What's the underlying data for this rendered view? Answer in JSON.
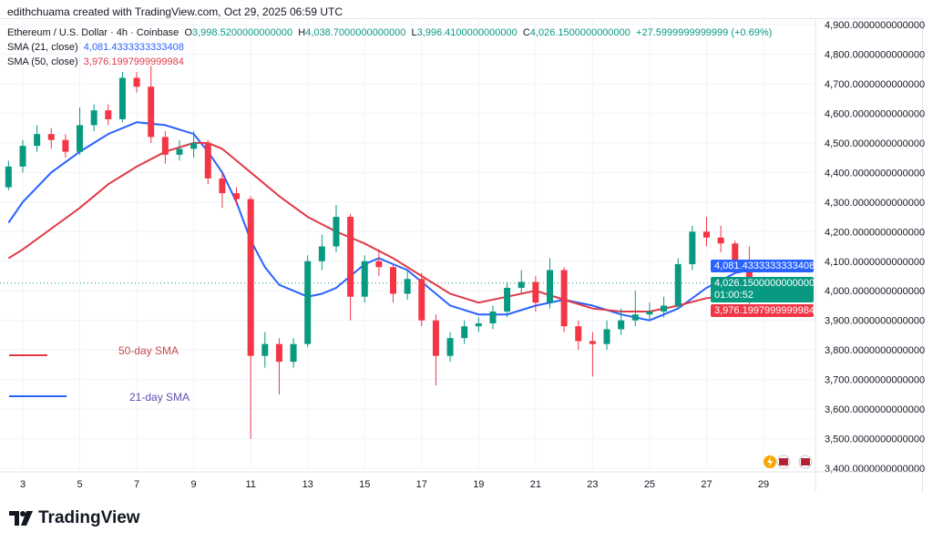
{
  "credit": "edithchuama created with TradingView.com, Oct 29, 2025 06:59 UTC",
  "header": {
    "symbol": "Ethereum / U.S. Dollar · 4h · Coinbase",
    "o_label": "O",
    "o": "3,998.5200000000000",
    "h_label": "H",
    "h": "4,038.7000000000000",
    "l_label": "L",
    "l": "3,996.4100000000000",
    "c_label": "C",
    "c": "4,026.1500000000000",
    "change": "+27.5999999999999 (+0.69%)",
    "sma21_label": "SMA (21, close)",
    "sma21_value": "4,081.4333333333408",
    "sma50_label": "SMA (50, close)",
    "sma50_value": "3,976.1997999999984"
  },
  "tags": {
    "sma21": "4,081.4333333333408",
    "price": "4,026.1500000000000",
    "countdown": "01:00:52",
    "sma50": "3,976.1997999999984"
  },
  "annotations": {
    "sma50": "50-day SMA",
    "sma21": "21-day SMA"
  },
  "logo": "TradingView",
  "colors": {
    "up": "#089981",
    "down": "#f23645",
    "sma21": "#2962ff",
    "sma50": "#e03a48"
  },
  "chart_data": {
    "type": "candlestick",
    "x_ticks": [
      "3",
      "5",
      "7",
      "9",
      "11",
      "13",
      "15",
      "17",
      "19",
      "21",
      "23",
      "25",
      "27",
      "29"
    ],
    "y_ticks": [
      "4,900.0000000000000",
      "4,800.0000000000000",
      "4,700.0000000000000",
      "4,600.0000000000000",
      "4,500.0000000000000",
      "4,400.0000000000000",
      "4,300.0000000000000",
      "4,200.0000000000000",
      "4,100.0000000000000",
      "4,000.0000000000000",
      "3,900.0000000000000",
      "3,800.0000000000000",
      "3,700.0000000000000",
      "3,600.0000000000000",
      "3,500.0000000000000",
      "3,400.0000000000000"
    ],
    "ylim": [
      3370,
      4930
    ],
    "xlim": [
      2.5,
      29.5
    ],
    "grid": true,
    "candles": [
      [
        2.5,
        4350,
        4440,
        4340,
        4420
      ],
      [
        3,
        4420,
        4510,
        4400,
        4490
      ],
      [
        3.5,
        4490,
        4560,
        4470,
        4530
      ],
      [
        4,
        4530,
        4550,
        4480,
        4510
      ],
      [
        4.5,
        4510,
        4530,
        4450,
        4470
      ],
      [
        5,
        4470,
        4620,
        4460,
        4560
      ],
      [
        5.5,
        4560,
        4630,
        4540,
        4610
      ],
      [
        6,
        4610,
        4630,
        4560,
        4580
      ],
      [
        6.5,
        4580,
        4740,
        4570,
        4720
      ],
      [
        7,
        4720,
        4740,
        4670,
        4690
      ],
      [
        7.5,
        4690,
        4760,
        4500,
        4520
      ],
      [
        8,
        4520,
        4540,
        4430,
        4460
      ],
      [
        8.5,
        4460,
        4510,
        4440,
        4480
      ],
      [
        9,
        4480,
        4540,
        4450,
        4500
      ],
      [
        9.5,
        4500,
        4510,
        4360,
        4380
      ],
      [
        10,
        4380,
        4400,
        4280,
        4330
      ],
      [
        10.5,
        4330,
        4350,
        4290,
        4310
      ],
      [
        11,
        4310,
        4320,
        3500,
        3780
      ],
      [
        11.5,
        3780,
        3860,
        3740,
        3820
      ],
      [
        12,
        3820,
        3840,
        3650,
        3760
      ],
      [
        12.5,
        3760,
        3840,
        3740,
        3820
      ],
      [
        13,
        3820,
        4120,
        3810,
        4100
      ],
      [
        13.5,
        4100,
        4190,
        4070,
        4150
      ],
      [
        14,
        4150,
        4290,
        4130,
        4250
      ],
      [
        14.5,
        4250,
        4260,
        3900,
        3980
      ],
      [
        15,
        3980,
        4120,
        3960,
        4100
      ],
      [
        15.5,
        4100,
        4140,
        4050,
        4080
      ],
      [
        16,
        4080,
        4090,
        3960,
        3990
      ],
      [
        16.5,
        3990,
        4070,
        3970,
        4040
      ],
      [
        17,
        4040,
        4060,
        3880,
        3900
      ],
      [
        17.5,
        3900,
        3920,
        3680,
        3780
      ],
      [
        18,
        3780,
        3860,
        3760,
        3840
      ],
      [
        18.5,
        3840,
        3900,
        3820,
        3880
      ],
      [
        19,
        3880,
        3910,
        3860,
        3890
      ],
      [
        19.5,
        3890,
        3950,
        3870,
        3930
      ],
      [
        20,
        3930,
        4030,
        3910,
        4010
      ],
      [
        20.5,
        4010,
        4070,
        3990,
        4030
      ],
      [
        21,
        4030,
        4050,
        3930,
        3960
      ],
      [
        21.5,
        3960,
        4110,
        3940,
        4070
      ],
      [
        22,
        4070,
        4080,
        3860,
        3880
      ],
      [
        22.5,
        3880,
        3900,
        3800,
        3830
      ],
      [
        23,
        3830,
        3860,
        3710,
        3820
      ],
      [
        23.5,
        3820,
        3900,
        3800,
        3870
      ],
      [
        24,
        3870,
        3940,
        3850,
        3900
      ],
      [
        24.5,
        3900,
        4000,
        3880,
        3920
      ],
      [
        25,
        3920,
        3960,
        3900,
        3930
      ],
      [
        25.5,
        3930,
        3980,
        3910,
        3950
      ],
      [
        26,
        3950,
        4110,
        3940,
        4090
      ],
      [
        26.5,
        4090,
        4220,
        4070,
        4200
      ],
      [
        27,
        4200,
        4250,
        4150,
        4180
      ],
      [
        27.5,
        4180,
        4220,
        4130,
        4160
      ],
      [
        28,
        4160,
        4170,
        4060,
        4100
      ],
      [
        28.5,
        4100,
        4150,
        3940,
        3990
      ],
      [
        29,
        3998.52,
        4038.7,
        3996.41,
        4026.15
      ]
    ],
    "series": [
      {
        "name": "SMA (21, close)",
        "points": [
          [
            2.5,
            4230
          ],
          [
            3,
            4300
          ],
          [
            4,
            4400
          ],
          [
            5,
            4470
          ],
          [
            6,
            4530
          ],
          [
            7,
            4570
          ],
          [
            8,
            4560
          ],
          [
            9,
            4530
          ],
          [
            9.5,
            4470
          ],
          [
            10,
            4400
          ],
          [
            10.5,
            4300
          ],
          [
            11,
            4170
          ],
          [
            11.5,
            4080
          ],
          [
            12,
            4020
          ],
          [
            13,
            3980
          ],
          [
            13.5,
            3990
          ],
          [
            14,
            4010
          ],
          [
            15,
            4090
          ],
          [
            15.5,
            4110
          ],
          [
            16,
            4090
          ],
          [
            16.5,
            4070
          ],
          [
            17,
            4030
          ],
          [
            18,
            3950
          ],
          [
            19,
            3920
          ],
          [
            20,
            3920
          ],
          [
            21,
            3950
          ],
          [
            22,
            3970
          ],
          [
            23,
            3950
          ],
          [
            24,
            3920
          ],
          [
            25,
            3900
          ],
          [
            26,
            3940
          ],
          [
            27,
            4010
          ],
          [
            28,
            4060
          ],
          [
            29.2,
            4081.43
          ]
        ]
      },
      {
        "name": "SMA (50, close)",
        "points": [
          [
            2.5,
            4110
          ],
          [
            3,
            4140
          ],
          [
            4,
            4210
          ],
          [
            5,
            4280
          ],
          [
            6,
            4360
          ],
          [
            7,
            4420
          ],
          [
            8,
            4470
          ],
          [
            9,
            4500
          ],
          [
            9.5,
            4500
          ],
          [
            10,
            4480
          ],
          [
            11,
            4400
          ],
          [
            12,
            4320
          ],
          [
            13,
            4250
          ],
          [
            14,
            4200
          ],
          [
            15,
            4160
          ],
          [
            16,
            4110
          ],
          [
            17,
            4050
          ],
          [
            18,
            3990
          ],
          [
            19,
            3960
          ],
          [
            20,
            3980
          ],
          [
            21,
            4000
          ],
          [
            22,
            3970
          ],
          [
            23,
            3940
          ],
          [
            24,
            3930
          ],
          [
            25,
            3930
          ],
          [
            26,
            3950
          ],
          [
            27,
            3975
          ],
          [
            28,
            3985
          ],
          [
            29.2,
            3976.2
          ]
        ]
      }
    ]
  }
}
